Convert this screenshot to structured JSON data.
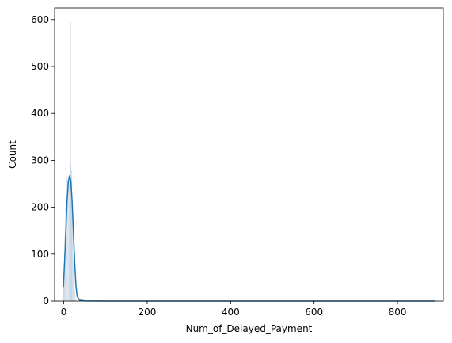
{
  "chart_data": {
    "type": "histogram",
    "title": "",
    "xlabel": "Num_of_Delayed_Payment",
    "ylabel": "Count",
    "xlim": [
      -22,
      910
    ],
    "ylim": [
      0,
      625
    ],
    "xticks": [
      0,
      200,
      400,
      600,
      800
    ],
    "yticks": [
      0,
      100,
      200,
      300,
      400,
      500,
      600
    ],
    "grid": false,
    "legend": "none",
    "colors": {
      "bars": "#5f88b1",
      "kde": "#1f77b4"
    },
    "bars": {
      "x": [
        -3,
        -2,
        -1,
        0,
        1,
        2,
        3,
        4,
        5,
        6,
        7,
        8,
        9,
        10,
        11,
        12,
        13,
        14,
        15,
        16,
        17,
        18,
        19,
        20,
        21,
        22,
        23,
        24,
        25,
        26,
        27,
        28
      ],
      "values": [
        10,
        35,
        55,
        80,
        100,
        140,
        180,
        200,
        230,
        250,
        262,
        268,
        238,
        255,
        262,
        248,
        268,
        285,
        318,
        594,
        290,
        278,
        262,
        220,
        180,
        140,
        100,
        70,
        45,
        25,
        12,
        5
      ]
    },
    "kde": {
      "x": [
        -1,
        2,
        5,
        8,
        11,
        14,
        17,
        20,
        23,
        26,
        29,
        32,
        38,
        50,
        100,
        300,
        500,
        700,
        890
      ],
      "y": [
        30,
        85,
        150,
        215,
        255,
        268,
        255,
        212,
        150,
        85,
        35,
        10,
        2,
        0.5,
        0,
        0,
        0,
        0,
        0
      ]
    }
  }
}
